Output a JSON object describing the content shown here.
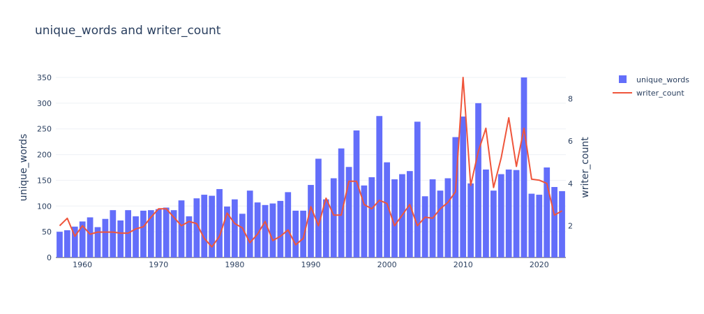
{
  "chart_data": {
    "title": "unique_words and writer_count",
    "type": "bar+line",
    "xlabel": "",
    "ylabel": "unique_words",
    "y2label": "writer_count",
    "xlim": [
      1956.5,
      2023.5
    ],
    "ylim": [
      0,
      350
    ],
    "y2lim": [
      0.5,
      9
    ],
    "x_ticks": [
      1960,
      1970,
      1980,
      1990,
      2000,
      2010,
      2020
    ],
    "y_ticks": [
      0,
      50,
      100,
      150,
      200,
      250,
      300,
      350
    ],
    "y2_ticks": [
      2,
      4,
      6,
      8
    ],
    "grid": true,
    "legend_position": "top-right",
    "colors": {
      "bars": "#636efa",
      "line": "#ef553b",
      "text": "#2a3f5f",
      "grid": "#eef0f5"
    },
    "x": [
      1957,
      1958,
      1959,
      1960,
      1961,
      1962,
      1963,
      1964,
      1965,
      1966,
      1967,
      1968,
      1969,
      1970,
      1971,
      1972,
      1973,
      1974,
      1975,
      1976,
      1977,
      1978,
      1979,
      1980,
      1981,
      1982,
      1983,
      1984,
      1985,
      1986,
      1987,
      1988,
      1989,
      1990,
      1991,
      1992,
      1993,
      1994,
      1995,
      1996,
      1997,
      1998,
      1999,
      2000,
      2001,
      2002,
      2003,
      2004,
      2005,
      2006,
      2007,
      2008,
      2009,
      2010,
      2011,
      2012,
      2013,
      2014,
      2015,
      2016,
      2017,
      2018,
      2019,
      2020,
      2021,
      2022,
      2023
    ],
    "series": [
      {
        "name": "unique_words",
        "type": "bar",
        "values": [
          50,
          53,
          60,
          70,
          78,
          59,
          75,
          92,
          72,
          92,
          80,
          91,
          92,
          94,
          97,
          92,
          111,
          80,
          115,
          122,
          120,
          133,
          99,
          113,
          85,
          130,
          107,
          102,
          105,
          110,
          127,
          91,
          91,
          141,
          192,
          113,
          154,
          212,
          176,
          247,
          140,
          156,
          275,
          185,
          152,
          162,
          168,
          264,
          119,
          152,
          130,
          154,
          234,
          274,
          144,
          300,
          171,
          130,
          162,
          171,
          170,
          350,
          124,
          122,
          175,
          137,
          129
        ]
      },
      {
        "name": "writer_count",
        "type": "line",
        "values": [
          2,
          2.35,
          1.5,
          2,
          1.6,
          1.7,
          1.7,
          1.7,
          1.65,
          1.65,
          1.85,
          1.95,
          2.4,
          2.8,
          2.8,
          2.4,
          2,
          2.2,
          2.1,
          1.4,
          1,
          1.5,
          2.6,
          2.1,
          1.9,
          1.2,
          1.6,
          2.2,
          1.3,
          1.5,
          1.8,
          1.1,
          1.4,
          2.9,
          2,
          3.3,
          2.5,
          2.5,
          4.1,
          4.1,
          3,
          2.8,
          3.2,
          3.05,
          2,
          2.5,
          3,
          2,
          2.4,
          2.35,
          2.8,
          3.1,
          3.6,
          9,
          3.9,
          5.5,
          6.6,
          3.8,
          5.2,
          7.1,
          4.8,
          6.6,
          4.2,
          4.15,
          4,
          2.5,
          2.7
        ]
      }
    ]
  }
}
